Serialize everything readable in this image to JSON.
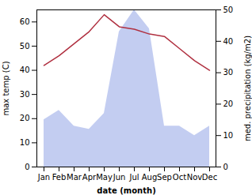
{
  "chart_data": {
    "type": "line",
    "categories": [
      "Jan",
      "Feb",
      "Mar",
      "Apr",
      "May",
      "Jun",
      "Jul",
      "Aug",
      "Sep",
      "Oct",
      "Nov",
      "Dec"
    ],
    "series": [
      {
        "type": "area",
        "color": "#b8c4ee",
        "axis": "y2",
        "values": [
          15,
          18,
          13,
          12,
          17,
          43,
          50,
          44,
          13,
          13,
          10,
          13
        ]
      },
      {
        "type": "line",
        "color": "#b03040",
        "values": [
          42,
          46,
          51,
          56,
          63,
          58,
          57,
          55,
          54,
          49,
          44,
          40
        ]
      }
    ],
    "xlabel": "date (month)",
    "ylabel": "max temp (C)",
    "y2label": "med. precipitation (kg/m2)",
    "ylim": [
      0,
      65
    ],
    "yticks": [
      0,
      10,
      20,
      30,
      40,
      50,
      60
    ],
    "y2lim": [
      0,
      50
    ],
    "y2ticks": [
      0,
      10,
      20,
      30,
      40,
      50
    ],
    "grid": false
  }
}
